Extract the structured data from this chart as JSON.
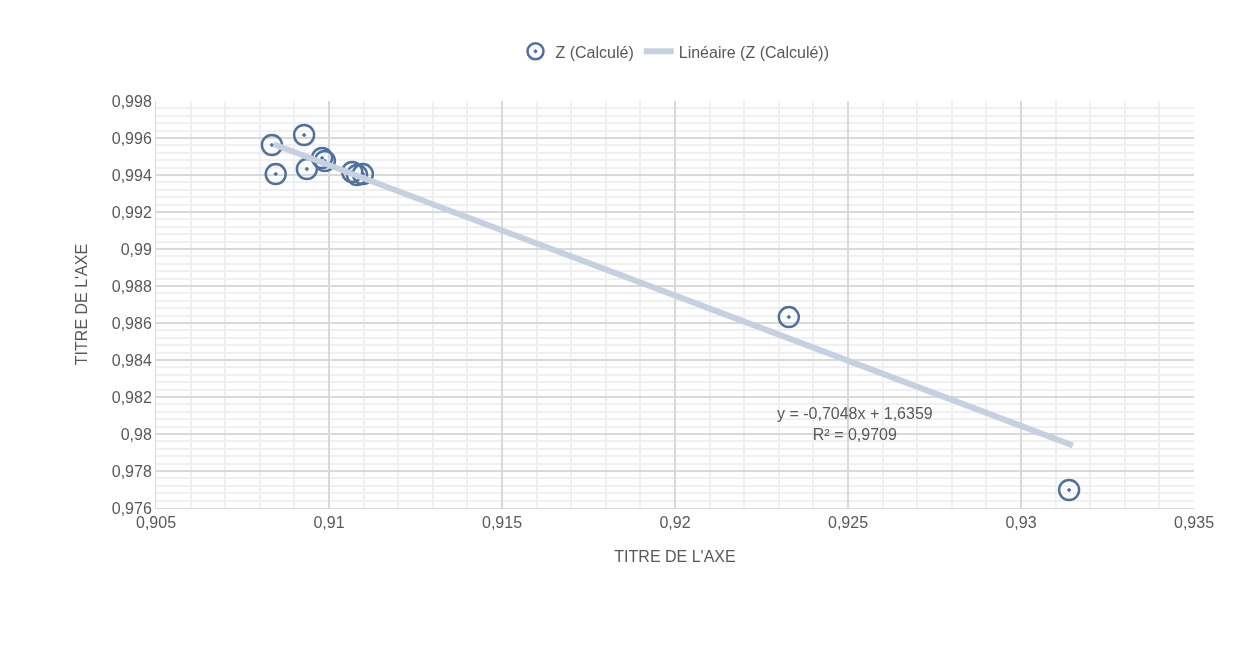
{
  "chart_data": {
    "type": "scatter",
    "xlabel": "TITRE DE L'AXE",
    "ylabel": "TITRE DE L'AXE",
    "series": [
      {
        "name": "Z (Calculé)",
        "color": "#4e71a1",
        "marker": "circle",
        "x": [
          0.90835,
          0.90846,
          0.90928,
          0.90936,
          0.9098,
          0.90988,
          0.91067,
          0.91081,
          0.91098,
          0.92329,
          0.93139
        ],
        "values": [
          0.99562,
          0.99405,
          0.99616,
          0.99432,
          0.99492,
          0.99476,
          0.99416,
          0.994,
          0.99405,
          0.98632,
          0.97697
        ]
      },
      {
        "name": "Linéaire (Z (Calculé))",
        "type": "line",
        "color": "#c5d0e0",
        "marker": "none",
        "x": [
          0.9084,
          0.9315
        ],
        "values": [
          0.99566,
          0.97938
        ]
      }
    ],
    "xlim": [
      0.905,
      0.935
    ],
    "xticks": [
      {
        "value": 0.905,
        "label": "0,905"
      },
      {
        "value": 0.91,
        "label": "0,91"
      },
      {
        "value": 0.915,
        "label": "0,915"
      },
      {
        "value": 0.92,
        "label": "0,92"
      },
      {
        "value": 0.925,
        "label": "0,925"
      },
      {
        "value": 0.93,
        "label": "0,93"
      },
      {
        "value": 0.935,
        "label": "0,935"
      }
    ],
    "ylim": [
      0.976,
      0.998
    ],
    "yticks": [
      {
        "value": 0.976,
        "label": "0,976"
      },
      {
        "value": 0.978,
        "label": "0,978"
      },
      {
        "value": 0.98,
        "label": "0,98"
      },
      {
        "value": 0.982,
        "label": "0,982"
      },
      {
        "value": 0.984,
        "label": "0,984"
      },
      {
        "value": 0.986,
        "label": "0,986"
      },
      {
        "value": 0.988,
        "label": "0,988"
      },
      {
        "value": 0.99,
        "label": "0,99"
      },
      {
        "value": 0.992,
        "label": "0,992"
      },
      {
        "value": 0.994,
        "label": "0,994"
      },
      {
        "value": 0.996,
        "label": "0,996"
      },
      {
        "value": 0.998,
        "label": "0,998"
      }
    ],
    "annotations": [
      "y = -0,7048x + 1,6359\nR² = 0,9709"
    ],
    "grid": true,
    "legend": "top"
  }
}
